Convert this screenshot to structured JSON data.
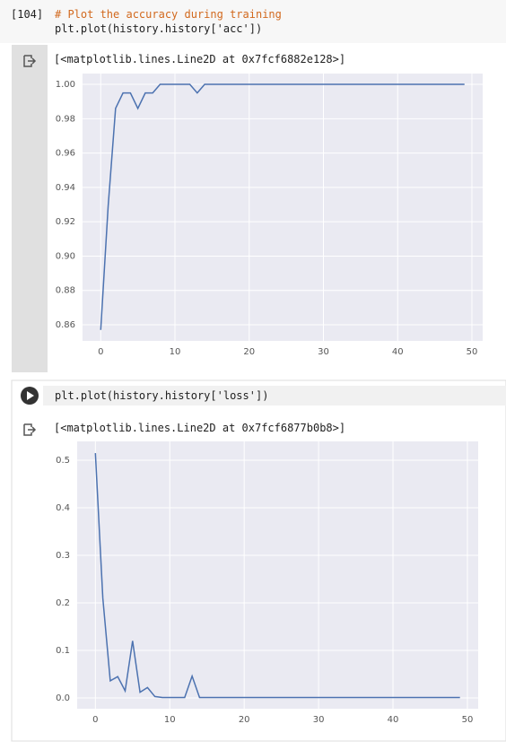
{
  "cells": [
    {
      "execution_count": "[104]",
      "code": [
        "# Plot the accuracy during training",
        "plt.plot(history.history['acc'])"
      ],
      "output": "[<matplotlib.lines.Line2D at 0x7fcf6882e128>]"
    },
    {
      "code": [
        "plt.plot(history.history['loss'])"
      ],
      "output": "[<matplotlib.lines.Line2D at 0x7fcf6877b0b8>]"
    }
  ],
  "chart_data": [
    {
      "type": "line",
      "color": "#4c72b0",
      "grid": true,
      "x": [
        0,
        1,
        2,
        3,
        4,
        5,
        6,
        7,
        8,
        9,
        10,
        11,
        12,
        13,
        14,
        15,
        16,
        17,
        18,
        19,
        20,
        21,
        22,
        23,
        24,
        25,
        26,
        27,
        28,
        29,
        30,
        31,
        32,
        33,
        34,
        35,
        36,
        37,
        38,
        39,
        40,
        41,
        42,
        43,
        44,
        45,
        46,
        47,
        48,
        49
      ],
      "values": [
        0.857,
        0.929,
        0.986,
        0.995,
        0.995,
        0.986,
        0.995,
        0.995,
        1.0,
        1.0,
        1.0,
        1.0,
        1.0,
        0.995,
        1.0,
        1.0,
        1.0,
        1.0,
        1.0,
        1.0,
        1.0,
        1.0,
        1.0,
        1.0,
        1.0,
        1.0,
        1.0,
        1.0,
        1.0,
        1.0,
        1.0,
        1.0,
        1.0,
        1.0,
        1.0,
        1.0,
        1.0,
        1.0,
        1.0,
        1.0,
        1.0,
        1.0,
        1.0,
        1.0,
        1.0,
        1.0,
        1.0,
        1.0,
        1.0,
        1.0
      ],
      "xlim": [
        -2.45,
        51.45
      ],
      "ylim": [
        0.8506,
        1.0063
      ],
      "xticks": [
        0,
        10,
        20,
        30,
        40,
        50
      ],
      "yticks": [
        {
          "value": 1,
          "label": "1.00"
        },
        0.98,
        0.96,
        0.94,
        0.92,
        {
          "value": 0.9,
          "label": "0.90"
        },
        0.88,
        0.86
      ]
    },
    {
      "type": "line",
      "color": "#4c72b0",
      "grid": true,
      "x": [
        0,
        1,
        2,
        3,
        4,
        5,
        6,
        7,
        8,
        9,
        10,
        11,
        12,
        13,
        14,
        15,
        16,
        17,
        18,
        19,
        20,
        21,
        22,
        23,
        24,
        25,
        26,
        27,
        28,
        29,
        30,
        31,
        32,
        33,
        34,
        35,
        36,
        37,
        38,
        39,
        40,
        41,
        42,
        43,
        44,
        45,
        46,
        47,
        48,
        49
      ],
      "values": [
        0.515,
        0.21,
        0.036,
        0.045,
        0.015,
        0.12,
        0.012,
        0.022,
        0.003,
        0.001,
        0.001,
        0.001,
        0.001,
        0.046,
        0.001,
        0.001,
        0.001,
        0.001,
        0.001,
        0.001,
        0.001,
        0.001,
        0.001,
        0.001,
        0.001,
        0.001,
        0.001,
        0.001,
        0.001,
        0.001,
        0.001,
        0.001,
        0.001,
        0.001,
        0.001,
        0.001,
        0.001,
        0.001,
        0.001,
        0.001,
        0.001,
        0.001,
        0.001,
        0.001,
        0.001,
        0.001,
        0.001,
        0.001,
        0.001,
        0.001
      ],
      "xlim": [
        -2.45,
        51.45
      ],
      "ylim": [
        -0.0226,
        0.5396
      ],
      "xticks": [
        0,
        10,
        20,
        30,
        40,
        50
      ],
      "yticks": [
        0.5,
        0.4,
        0.3,
        0.2,
        0.1,
        {
          "value": 0,
          "label": "0.0"
        }
      ]
    }
  ]
}
